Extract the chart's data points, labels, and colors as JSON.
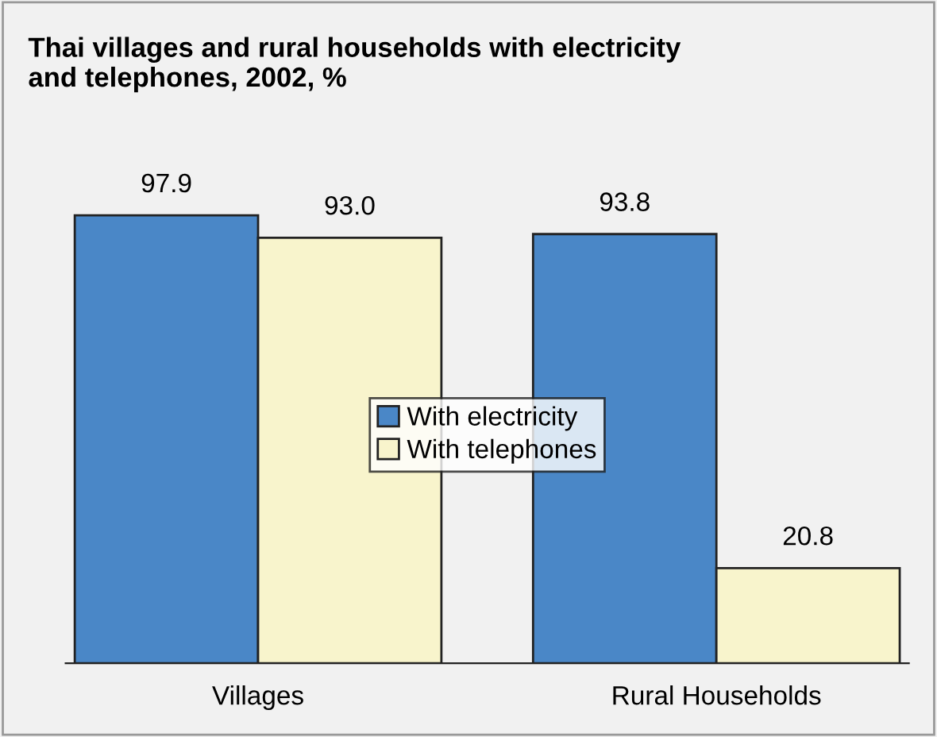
{
  "chart_data": {
    "type": "bar",
    "title": "Thai villages and rural households with electricity\nand telephones, 2002, %",
    "categories": [
      "Villages",
      "Rural Households"
    ],
    "series": [
      {
        "name": "With electricity",
        "color": "#4a87c7",
        "values": [
          97.9,
          93.8
        ],
        "value_labels": [
          "97.9",
          "93.8"
        ]
      },
      {
        "name": "With telephones",
        "color": "#f8f4cc",
        "values": [
          93.0,
          20.8
        ],
        "value_labels": [
          "93.0",
          "20.8"
        ]
      }
    ],
    "legend": "center",
    "grid": false
  }
}
